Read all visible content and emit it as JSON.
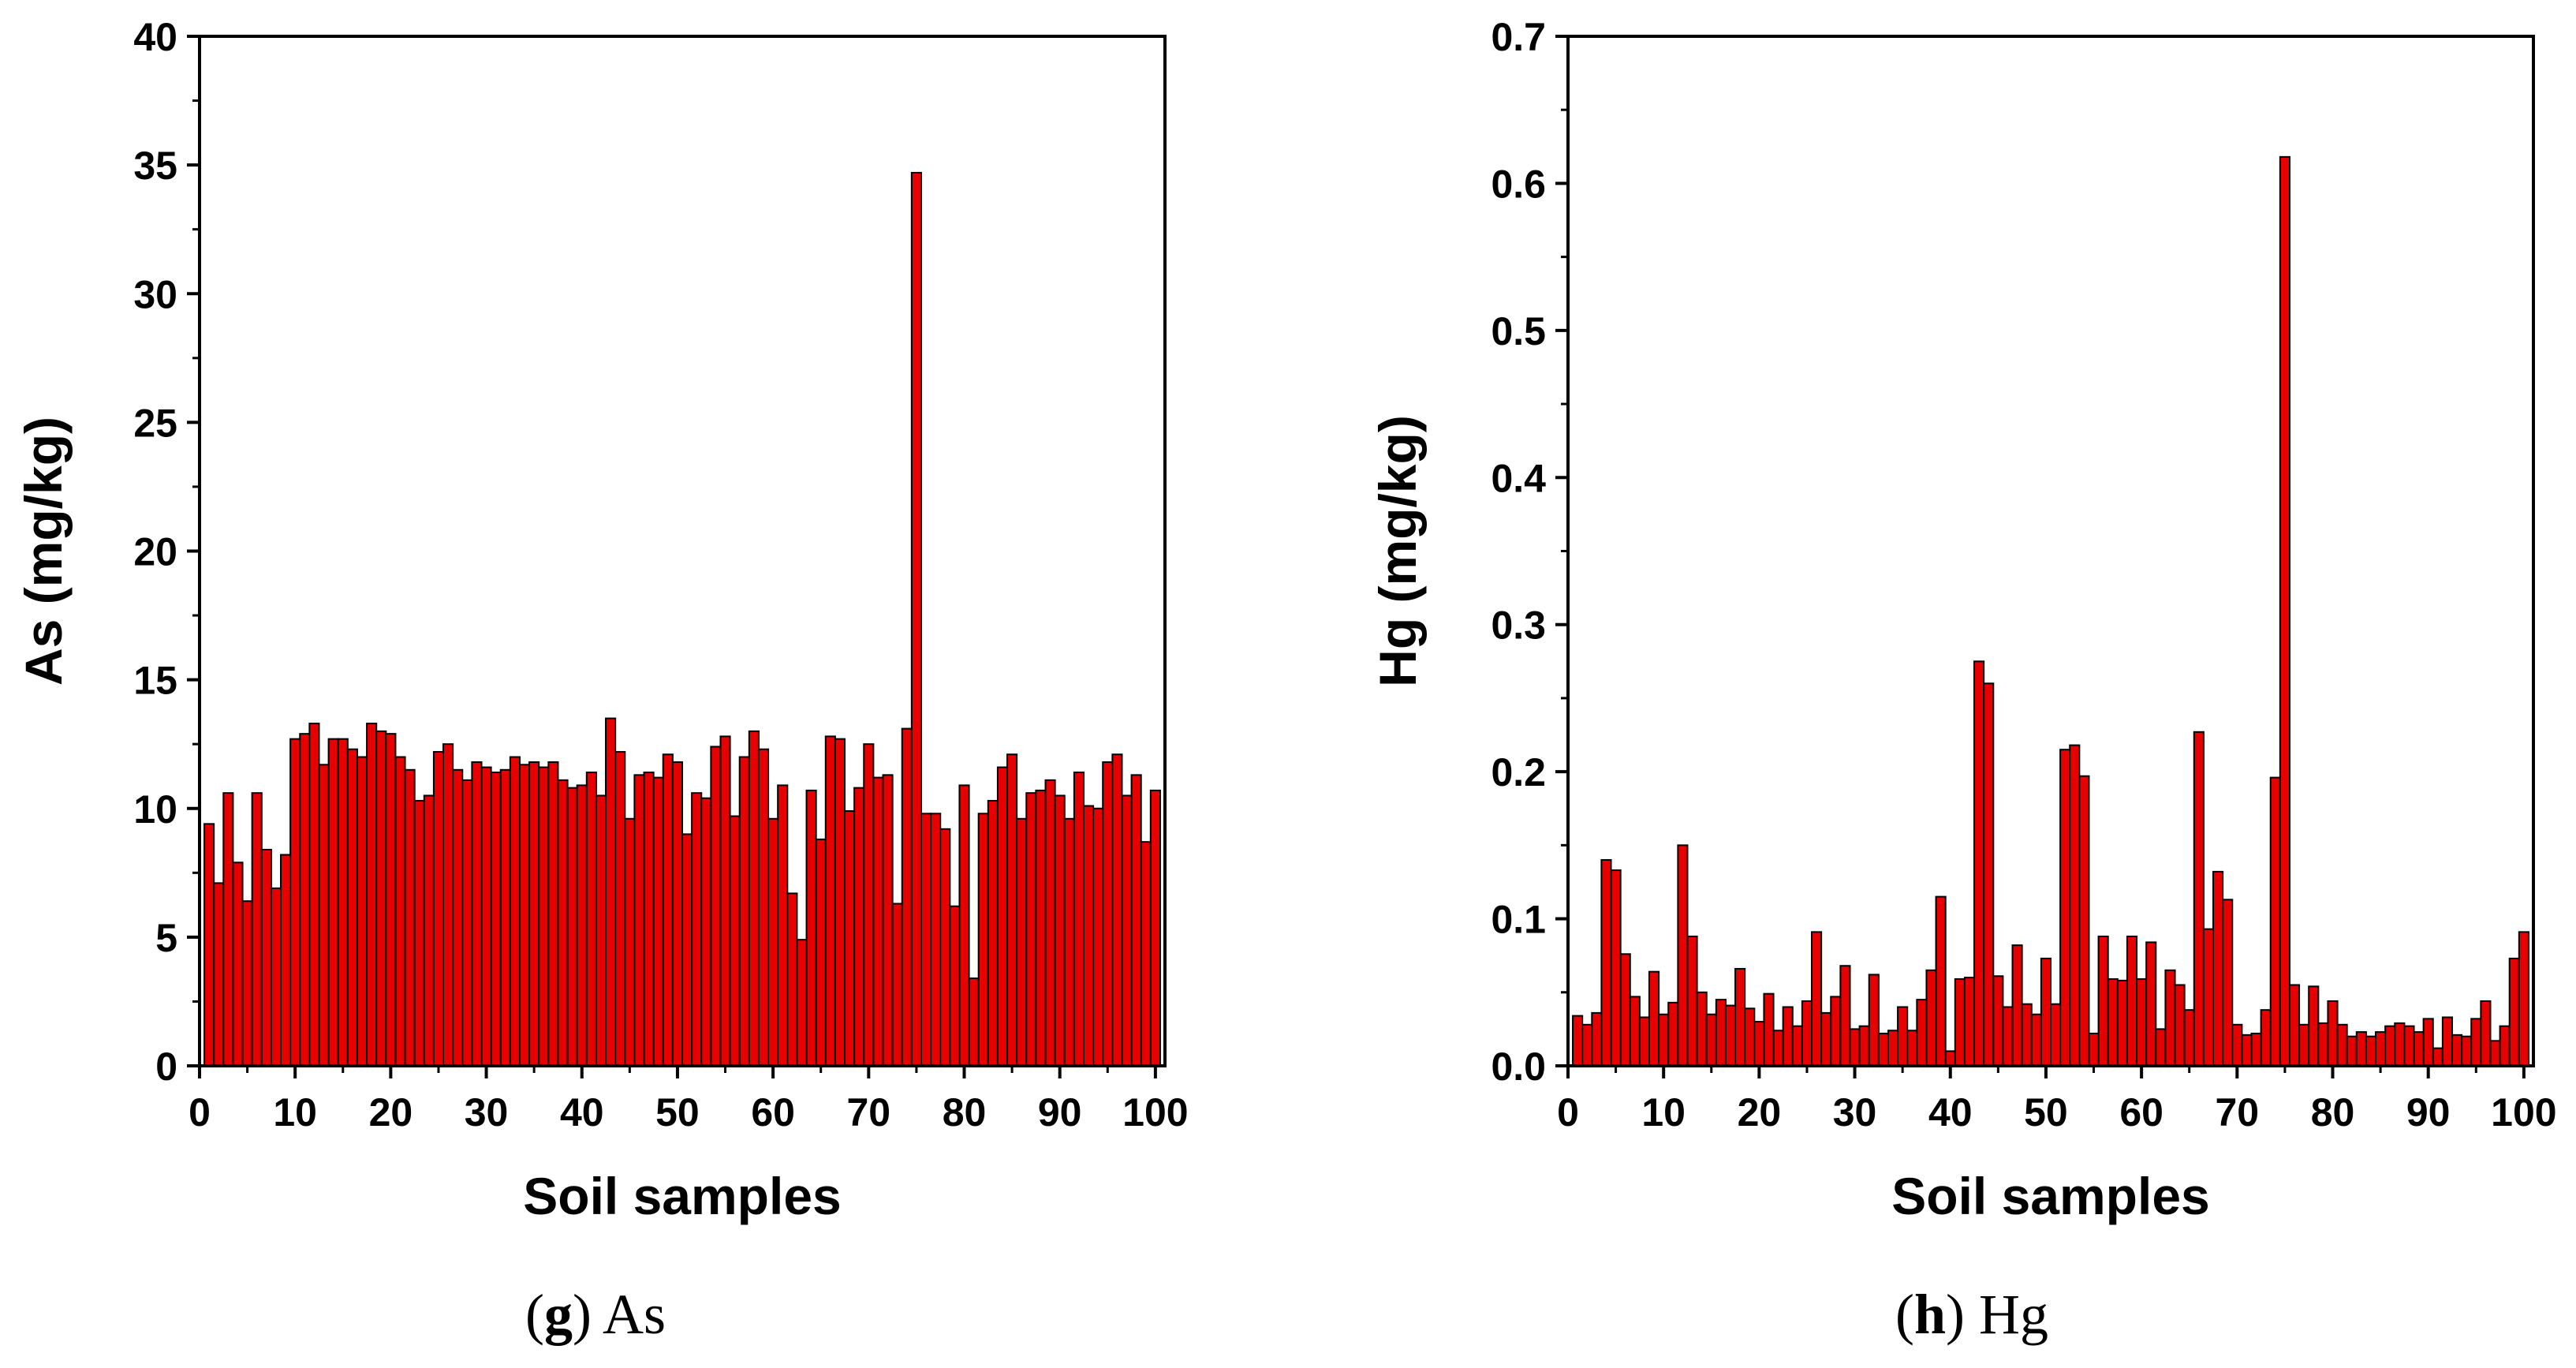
{
  "chart_data": [
    {
      "type": "bar",
      "title": "",
      "caption_letter": "g",
      "caption_text": "As",
      "xlabel": "Soil samples",
      "ylabel": "As (mg/kg)",
      "xlim": [
        0,
        101
      ],
      "ylim": [
        0,
        40
      ],
      "xticks": [
        0,
        10,
        20,
        30,
        40,
        50,
        60,
        70,
        80,
        90,
        100
      ],
      "xtick_labels": [
        "0",
        "10",
        "20",
        "30",
        "40",
        "50",
        "60",
        "70",
        "80",
        "90",
        "100"
      ],
      "yticks": [
        0,
        5,
        10,
        15,
        20,
        25,
        30,
        35,
        40
      ],
      "ytick_labels": [
        "0",
        "5",
        "10",
        "15",
        "20",
        "25",
        "30",
        "35",
        "40"
      ],
      "bar_color": "#e60000",
      "x": [
        1,
        2,
        3,
        4,
        5,
        6,
        7,
        8,
        9,
        10,
        11,
        12,
        13,
        14,
        15,
        16,
        17,
        18,
        19,
        20,
        21,
        22,
        23,
        24,
        25,
        26,
        27,
        28,
        29,
        30,
        31,
        32,
        33,
        34,
        35,
        36,
        37,
        38,
        39,
        40,
        41,
        42,
        43,
        44,
        45,
        46,
        47,
        48,
        49,
        50,
        51,
        52,
        53,
        54,
        55,
        56,
        57,
        58,
        59,
        60,
        61,
        62,
        63,
        64,
        65,
        66,
        67,
        68,
        69,
        70,
        71,
        72,
        73,
        74,
        75,
        76,
        77,
        78,
        79,
        80,
        81,
        82,
        83,
        84,
        85,
        86,
        87,
        88,
        89,
        90,
        91,
        92,
        93,
        94,
        95,
        96,
        97,
        98,
        99,
        100
      ],
      "values": [
        9.4,
        7.1,
        10.6,
        7.9,
        6.4,
        10.6,
        8.4,
        6.9,
        8.2,
        12.7,
        12.9,
        13.3,
        11.7,
        12.7,
        12.7,
        12.3,
        12.0,
        13.3,
        13.0,
        12.9,
        12.0,
        11.5,
        10.3,
        10.5,
        12.2,
        12.5,
        11.5,
        11.1,
        11.8,
        11.6,
        11.4,
        11.5,
        12.0,
        11.7,
        11.8,
        11.6,
        11.8,
        11.1,
        10.8,
        10.9,
        11.4,
        10.5,
        13.5,
        12.2,
        9.6,
        11.3,
        11.4,
        11.2,
        12.1,
        11.8,
        9.0,
        10.6,
        10.4,
        12.4,
        12.8,
        9.7,
        12.0,
        13.0,
        12.3,
        9.6,
        10.9,
        6.7,
        4.9,
        10.7,
        8.8,
        12.8,
        12.7,
        9.9,
        10.8,
        12.5,
        11.2,
        11.3,
        6.3,
        13.1,
        34.7,
        9.8,
        9.8,
        9.2,
        6.2,
        10.9,
        3.4,
        9.8,
        10.3,
        11.6,
        12.1,
        9.6,
        10.6,
        10.7,
        11.1,
        10.5,
        9.6,
        11.4,
        10.1,
        10.0,
        11.8,
        12.1,
        10.5,
        11.3,
        8.7,
        10.7
      ]
    },
    {
      "type": "bar",
      "title": "",
      "caption_letter": "h",
      "caption_text": "Hg",
      "xlabel": "Soil samples",
      "ylabel": "Hg (mg/kg)",
      "xlim": [
        0,
        101
      ],
      "ylim": [
        0,
        0.7
      ],
      "xticks": [
        0,
        10,
        20,
        30,
        40,
        50,
        60,
        70,
        80,
        90,
        100
      ],
      "xtick_labels": [
        "0",
        "10",
        "20",
        "30",
        "40",
        "50",
        "60",
        "70",
        "80",
        "90",
        "100"
      ],
      "yticks": [
        0,
        0.1,
        0.2,
        0.3,
        0.4,
        0.5,
        0.6,
        0.7
      ],
      "ytick_labels": [
        "0.0",
        "0.1",
        "0.2",
        "0.3",
        "0.4",
        "0.5",
        "0.6",
        "0.7"
      ],
      "bar_color": "#e60000",
      "x": [
        1,
        2,
        3,
        4,
        5,
        6,
        7,
        8,
        9,
        10,
        11,
        12,
        13,
        14,
        15,
        16,
        17,
        18,
        19,
        20,
        21,
        22,
        23,
        24,
        25,
        26,
        27,
        28,
        29,
        30,
        31,
        32,
        33,
        34,
        35,
        36,
        37,
        38,
        39,
        40,
        41,
        42,
        43,
        44,
        45,
        46,
        47,
        48,
        49,
        50,
        51,
        52,
        53,
        54,
        55,
        56,
        57,
        58,
        59,
        60,
        61,
        62,
        63,
        64,
        65,
        66,
        67,
        68,
        69,
        70,
        71,
        72,
        73,
        74,
        75,
        76,
        77,
        78,
        79,
        80,
        81,
        82,
        83,
        84,
        85,
        86,
        87,
        88,
        89,
        90,
        91,
        92,
        93,
        94,
        95,
        96,
        97,
        98,
        99,
        100
      ],
      "values": [
        0.034,
        0.028,
        0.036,
        0.14,
        0.133,
        0.076,
        0.047,
        0.033,
        0.064,
        0.035,
        0.043,
        0.15,
        0.088,
        0.05,
        0.035,
        0.045,
        0.041,
        0.066,
        0.039,
        0.03,
        0.049,
        0.024,
        0.04,
        0.027,
        0.044,
        0.091,
        0.036,
        0.047,
        0.068,
        0.025,
        0.027,
        0.062,
        0.022,
        0.024,
        0.04,
        0.024,
        0.045,
        0.065,
        0.115,
        0.01,
        0.059,
        0.06,
        0.275,
        0.26,
        0.061,
        0.04,
        0.082,
        0.042,
        0.035,
        0.073,
        0.042,
        0.215,
        0.218,
        0.197,
        0.022,
        0.088,
        0.059,
        0.058,
        0.088,
        0.059,
        0.084,
        0.025,
        0.065,
        0.055,
        0.038,
        0.227,
        0.093,
        0.132,
        0.113,
        0.028,
        0.021,
        0.022,
        0.038,
        0.196,
        0.618,
        0.055,
        0.028,
        0.054,
        0.029,
        0.044,
        0.028,
        0.02,
        0.023,
        0.02,
        0.023,
        0.027,
        0.029,
        0.027,
        0.023,
        0.032,
        0.012,
        0.033,
        0.021,
        0.02,
        0.032,
        0.044,
        0.017,
        0.027,
        0.073,
        0.091
      ]
    }
  ]
}
